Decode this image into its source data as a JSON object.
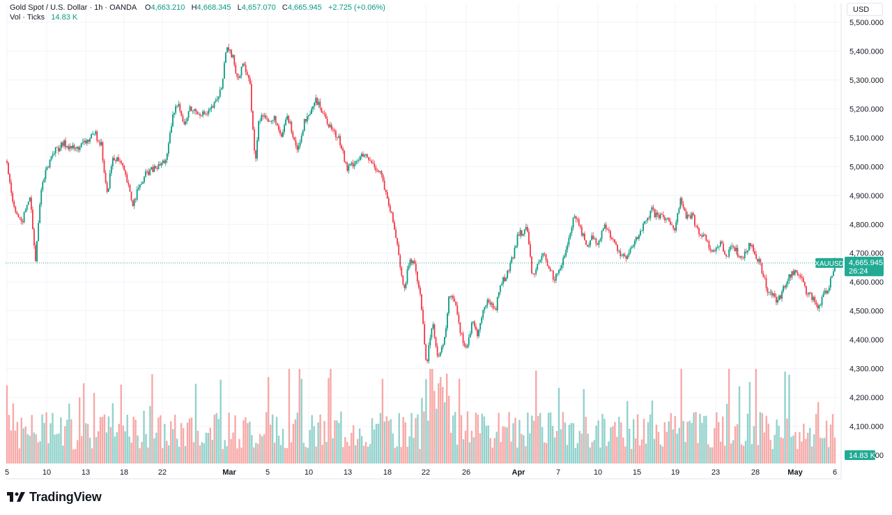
{
  "header": {
    "symbol": "Gold Spot / U.S. Dollar",
    "interval": "1h",
    "source": "OANDA",
    "open_label": "O",
    "open_value": "4,663.210",
    "high_label": "H",
    "high_value": "4,668.345",
    "low_label": "L",
    "low_value": "4,657.070",
    "close_label": "C",
    "close_value": "4,665.945",
    "change": "+2.725 (+0.06%)",
    "vol_label": "Vol · Ticks",
    "vol_value": "14.83 K"
  },
  "currency_button": "USD",
  "price_tag": {
    "ticker": "XAUUSD",
    "price": "4,665.945",
    "countdown": "26:24"
  },
  "volume_tag": "14.83 K",
  "brand": "TradingView",
  "colors": {
    "up": "#089981",
    "down": "#f23645",
    "vol_up": "#92d2cc",
    "vol_down": "#f7a9a7",
    "grid": "#f0f3fa",
    "line": "#22ab94"
  },
  "chart_data": {
    "type": "candlestick",
    "title": "Gold Spot / U.S. Dollar · 1h · OANDA",
    "y_axis": {
      "ticks": [
        "5,500.000",
        "5,400.000",
        "5,300.000",
        "5,200.000",
        "5,100.000",
        "5,000.000",
        "4,900.000",
        "4,800.000",
        "4,700.000",
        "4,600.000",
        "4,500.000",
        "4,400.000",
        "4,300.000",
        "4,200.000",
        "4,100.000",
        "4,000.000"
      ],
      "ylim": [
        4000,
        5520
      ]
    },
    "x_axis": {
      "ticks": [
        {
          "label": "5",
          "bold": false
        },
        {
          "label": "10",
          "bold": false
        },
        {
          "label": "13",
          "bold": false
        },
        {
          "label": "18",
          "bold": false
        },
        {
          "label": "22",
          "bold": false
        },
        {
          "label": "Mar",
          "bold": true
        },
        {
          "label": "5",
          "bold": false
        },
        {
          "label": "10",
          "bold": false
        },
        {
          "label": "13",
          "bold": false
        },
        {
          "label": "18",
          "bold": false
        },
        {
          "label": "22",
          "bold": false
        },
        {
          "label": "26",
          "bold": false
        },
        {
          "label": "Apr",
          "bold": true
        },
        {
          "label": "7",
          "bold": false
        },
        {
          "label": "10",
          "bold": false
        },
        {
          "label": "15",
          "bold": false
        },
        {
          "label": "19",
          "bold": false
        },
        {
          "label": "23",
          "bold": false
        },
        {
          "label": "28",
          "bold": false
        },
        {
          "label": "May",
          "bold": true
        },
        {
          "label": "6",
          "bold": false
        }
      ]
    },
    "price_path": [
      [
        0,
        5020
      ],
      [
        2,
        4880
      ],
      [
        5,
        4800
      ],
      [
        8,
        4900
      ],
      [
        10,
        4670
      ],
      [
        12,
        4930
      ],
      [
        16,
        5050
      ],
      [
        20,
        5080
      ],
      [
        24,
        5060
      ],
      [
        28,
        5090
      ],
      [
        31,
        5110
      ],
      [
        33,
        5080
      ],
      [
        35,
        4900
      ],
      [
        37,
        5030
      ],
      [
        40,
        5010
      ],
      [
        42,
        4950
      ],
      [
        44,
        4870
      ],
      [
        46,
        4920
      ],
      [
        49,
        4980
      ],
      [
        53,
        5000
      ],
      [
        56,
        5030
      ],
      [
        58,
        5170
      ],
      [
        60,
        5230
      ],
      [
        62,
        5140
      ],
      [
        64,
        5200
      ],
      [
        67,
        5190
      ],
      [
        70,
        5180
      ],
      [
        73,
        5220
      ],
      [
        75,
        5270
      ],
      [
        77,
        5410
      ],
      [
        79,
        5380
      ],
      [
        81,
        5300
      ],
      [
        83,
        5360
      ],
      [
        85,
        5300
      ],
      [
        87,
        5000
      ],
      [
        88,
        5150
      ],
      [
        90,
        5190
      ],
      [
        92,
        5150
      ],
      [
        94,
        5170
      ],
      [
        96,
        5090
      ],
      [
        98,
        5180
      ],
      [
        100,
        5120
      ],
      [
        102,
        5050
      ],
      [
        104,
        5150
      ],
      [
        106,
        5170
      ],
      [
        108,
        5230
      ],
      [
        110,
        5200
      ],
      [
        112,
        5160
      ],
      [
        114,
        5130
      ],
      [
        117,
        5080
      ],
      [
        119,
        4990
      ],
      [
        122,
        5020
      ],
      [
        125,
        5040
      ],
      [
        128,
        5010
      ],
      [
        131,
        4980
      ],
      [
        133,
        4890
      ],
      [
        135,
        4820
      ],
      [
        137,
        4720
      ],
      [
        139,
        4560
      ],
      [
        141,
        4680
      ],
      [
        143,
        4650
      ],
      [
        145,
        4540
      ],
      [
        147,
        4310
      ],
      [
        149,
        4470
      ],
      [
        151,
        4340
      ],
      [
        153,
        4380
      ],
      [
        155,
        4560
      ],
      [
        157,
        4540
      ],
      [
        159,
        4420
      ],
      [
        161,
        4370
      ],
      [
        163,
        4460
      ],
      [
        165,
        4420
      ],
      [
        167,
        4510
      ],
      [
        169,
        4540
      ],
      [
        171,
        4500
      ],
      [
        173,
        4600
      ],
      [
        175,
        4620
      ],
      [
        177,
        4680
      ],
      [
        179,
        4760
      ],
      [
        182,
        4790
      ],
      [
        184,
        4620
      ],
      [
        186,
        4660
      ],
      [
        188,
        4700
      ],
      [
        190,
        4640
      ],
      [
        192,
        4610
      ],
      [
        195,
        4680
      ],
      [
        197,
        4760
      ],
      [
        199,
        4840
      ],
      [
        201,
        4780
      ],
      [
        203,
        4720
      ],
      [
        205,
        4760
      ],
      [
        207,
        4730
      ],
      [
        209,
        4790
      ],
      [
        211,
        4770
      ],
      [
        213,
        4730
      ],
      [
        215,
        4700
      ],
      [
        217,
        4680
      ],
      [
        219,
        4720
      ],
      [
        222,
        4780
      ],
      [
        224,
        4810
      ],
      [
        226,
        4850
      ],
      [
        228,
        4820
      ],
      [
        230,
        4830
      ],
      [
        232,
        4800
      ],
      [
        234,
        4790
      ],
      [
        236,
        4890
      ],
      [
        238,
        4820
      ],
      [
        240,
        4830
      ],
      [
        242,
        4780
      ],
      [
        244,
        4760
      ],
      [
        246,
        4720
      ],
      [
        248,
        4710
      ],
      [
        250,
        4740
      ],
      [
        252,
        4690
      ],
      [
        254,
        4720
      ],
      [
        256,
        4700
      ],
      [
        258,
        4690
      ],
      [
        260,
        4730
      ],
      [
        262,
        4700
      ],
      [
        264,
        4660
      ],
      [
        266,
        4580
      ],
      [
        268,
        4560
      ],
      [
        270,
        4530
      ],
      [
        272,
        4580
      ],
      [
        274,
        4620
      ],
      [
        276,
        4640
      ],
      [
        278,
        4610
      ],
      [
        280,
        4570
      ],
      [
        282,
        4550
      ],
      [
        284,
        4510
      ],
      [
        286,
        4550
      ],
      [
        288,
        4590
      ],
      [
        290,
        4666
      ]
    ],
    "current_price": 4665.945
  }
}
